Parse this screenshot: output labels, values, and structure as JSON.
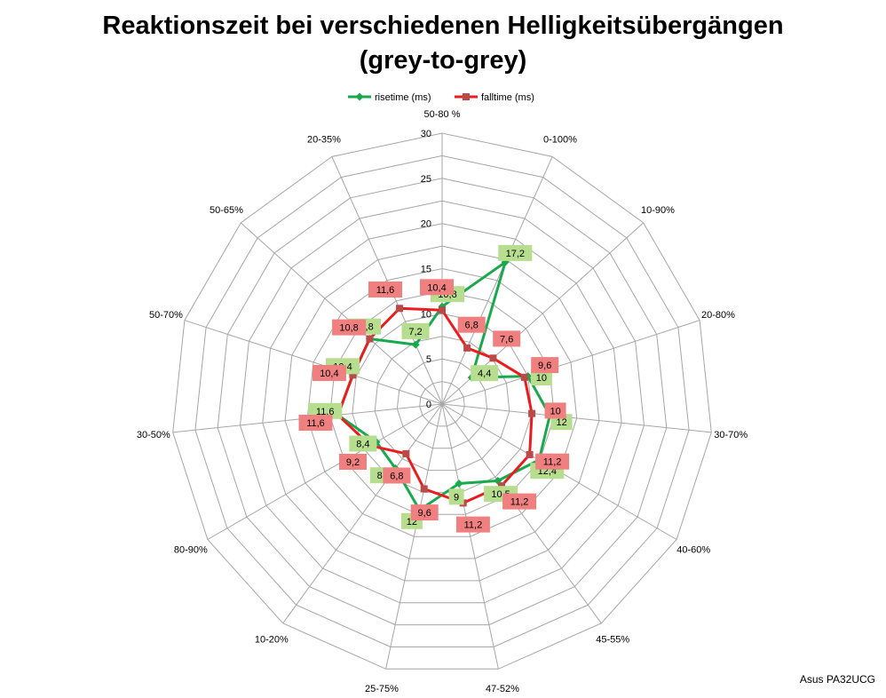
{
  "title_line1": "Reaktionszeit bei verschiedenen Helligkeitsübergängen",
  "title_line2": "(grey-to-grey)",
  "credit": "Asus PA32UCG",
  "colors": {
    "rise": "#19a94d",
    "fall": "#e81e1e",
    "fall_marker": "#b94a48",
    "rise_label_bg": "#b7dd8e",
    "fall_label_bg": "#f08080",
    "fall_label_bg_dark": "#e0694c",
    "grid": "#a6a6a6"
  },
  "chart_data": {
    "type": "radar",
    "title": "Reaktionszeit bei verschiedenen Helligkeitsübergängen (grey-to-grey)",
    "categories": [
      "50-80 %",
      "0-100%",
      "10-90%",
      "20-80%",
      "30-70%",
      "40-60%",
      "45-55%",
      "47-52%",
      "25-75%",
      "10-20%",
      "80-90%",
      "30-50%",
      "50-70%",
      "50-65%",
      "20-35%"
    ],
    "series": [
      {
        "name": "risetime (ms)",
        "values": [
          10.8,
          17.2,
          4.4,
          10,
          12,
          12.4,
          10.5,
          9,
          12,
          8.8,
          8.4,
          11.6,
          10.4,
          10.8,
          7.2
        ]
      },
      {
        "name": "falltime (ms)",
        "values": [
          10.4,
          6.8,
          7.6,
          9.6,
          10,
          11.2,
          11.2,
          11.2,
          9.6,
          6.8,
          9.2,
          11.6,
          10.4,
          10.8,
          11.6
        ]
      }
    ],
    "ylim": [
      0,
      30
    ],
    "ticks": [
      0,
      5,
      10,
      15,
      20,
      25,
      30
    ],
    "legend_position": "top",
    "grid": true
  }
}
